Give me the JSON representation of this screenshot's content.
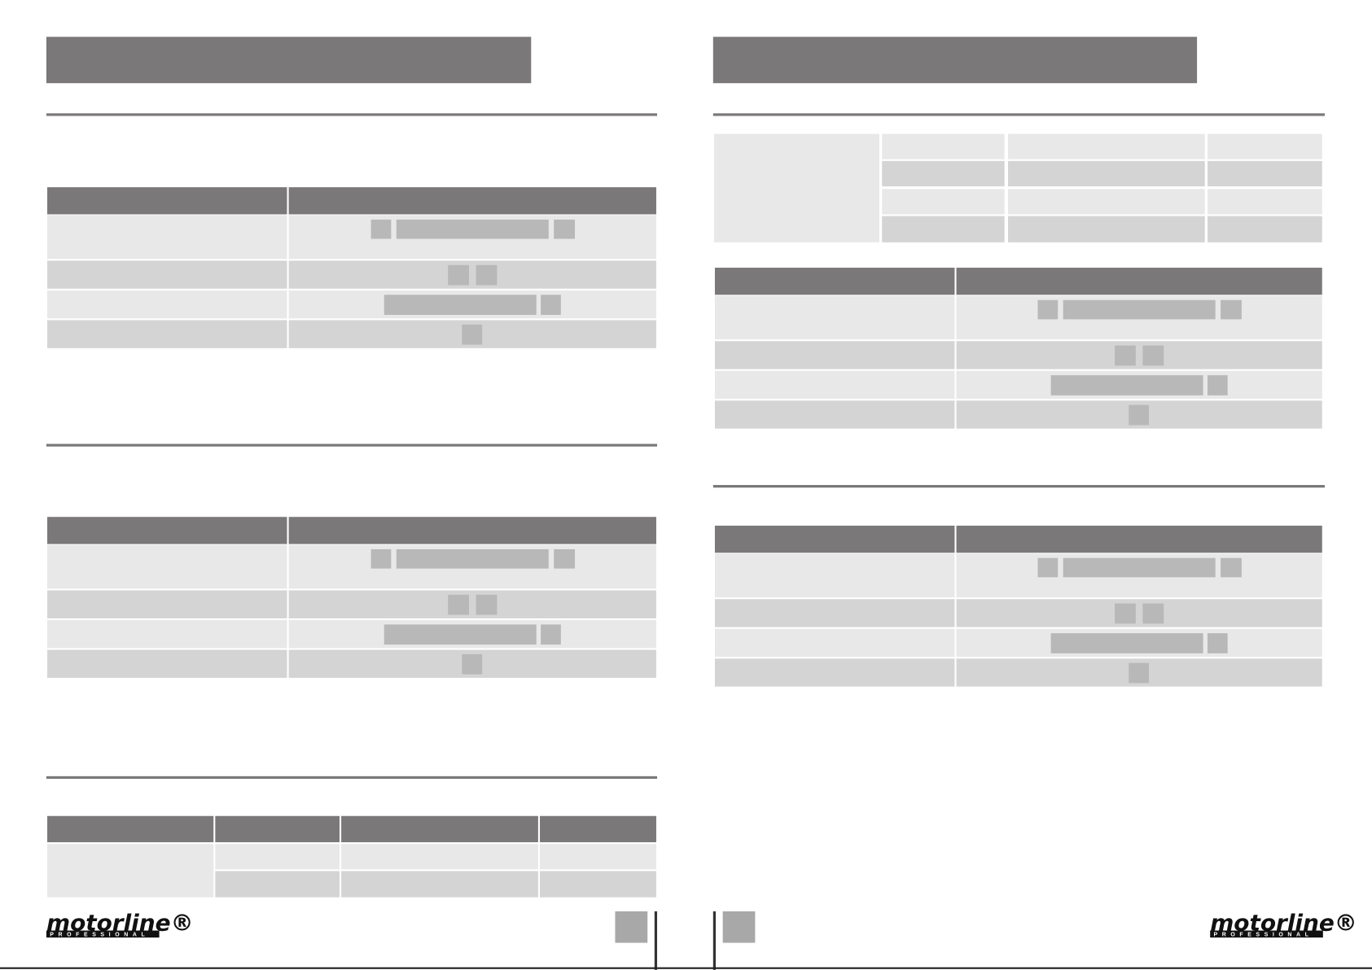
{
  "pages": [
    {
      "logo": "motorline®",
      "tagline": "PROFESSIONAL"
    },
    {
      "logo": "motorline®",
      "tagline": "PROFESSIONAL"
    }
  ]
}
